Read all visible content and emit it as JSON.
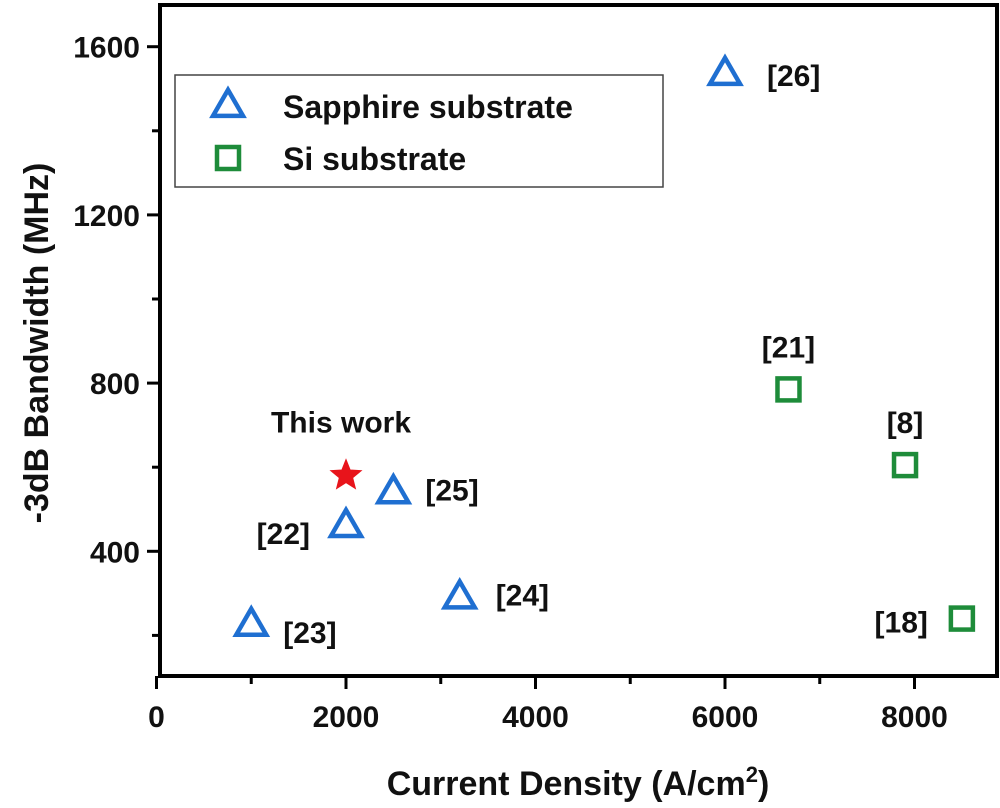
{
  "chart_data": {
    "type": "scatter",
    "title": "",
    "xlabel": "Current Density (A/cm",
    "xlabel_sup": "2",
    "xlabel_end": ")",
    "ylabel": "-3dB Bandwidth (MHz)",
    "xlim": [
      0,
      9000
    ],
    "ylim": [
      100,
      1700
    ],
    "x_ticks": [
      0,
      2000,
      4000,
      6000,
      8000
    ],
    "x_tick_labels": [
      "0",
      "2000",
      "4000",
      "6000",
      "8000"
    ],
    "x_minor_ticks": [
      1000,
      3000,
      5000,
      7000
    ],
    "y_ticks": [
      400,
      800,
      1200,
      1600
    ],
    "y_tick_labels": [
      "400",
      "800",
      "1200",
      "1600"
    ],
    "y_minor_ticks": [
      200,
      600,
      1000,
      1400
    ],
    "grid": false,
    "legend_position": "top-left",
    "series": [
      {
        "name": "Sapphire substrate",
        "marker": "triangle-open",
        "color": "#1f6fd1",
        "points": [
          {
            "x": 1000,
            "y": 225,
            "label": "[23]"
          },
          {
            "x": 2000,
            "y": 460,
            "label": "[22]"
          },
          {
            "x": 2500,
            "y": 540,
            "label": "[25]"
          },
          {
            "x": 3200,
            "y": 290,
            "label": "[24]"
          },
          {
            "x": 6000,
            "y": 1535,
            "label": "[26]"
          }
        ]
      },
      {
        "name": "Si substrate",
        "marker": "square-open",
        "color": "#1e8c3a",
        "points": [
          {
            "x": 6670,
            "y": 785,
            "label": "[21]"
          },
          {
            "x": 7900,
            "y": 605,
            "label": "[8]"
          },
          {
            "x": 8500,
            "y": 240,
            "label": "[18]"
          }
        ]
      }
    ],
    "highlight": {
      "marker": "star",
      "color": "#e8141b",
      "x": 2000,
      "y": 580,
      "label": "This work"
    }
  }
}
